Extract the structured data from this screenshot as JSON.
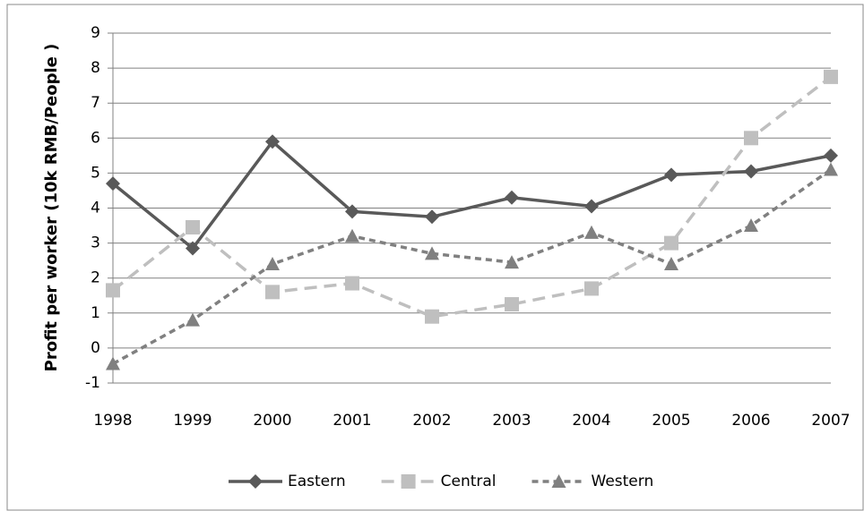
{
  "chart_data": {
    "type": "line",
    "y_label": "Profit per worker (10k RMB/People )",
    "categories": [
      "1998",
      "1999",
      "2000",
      "2001",
      "2002",
      "2003",
      "2004",
      "2005",
      "2006",
      "2007"
    ],
    "series": [
      {
        "name": "Eastern",
        "color": "#595959",
        "dash": "solid",
        "marker": "diamond",
        "values": [
          4.7,
          2.85,
          5.9,
          3.9,
          3.75,
          4.3,
          4.05,
          4.95,
          5.05,
          5.5
        ]
      },
      {
        "name": "Central",
        "color": "#bfbfbf",
        "dash": "long",
        "marker": "square",
        "values": [
          1.65,
          3.45,
          1.6,
          1.85,
          0.9,
          1.25,
          1.7,
          3.0,
          6.0,
          7.75
        ]
      },
      {
        "name": "Western",
        "color": "#808080",
        "dash": "short",
        "marker": "triangle",
        "values": [
          -0.45,
          0.8,
          2.4,
          3.2,
          2.7,
          2.45,
          3.3,
          2.4,
          3.5,
          5.1
        ]
      }
    ],
    "ylim": [
      -1,
      9
    ],
    "yticks": [
      -1,
      0,
      1,
      2,
      3,
      4,
      5,
      6,
      7,
      8,
      9
    ],
    "grid": true,
    "legend": "bottom"
  }
}
